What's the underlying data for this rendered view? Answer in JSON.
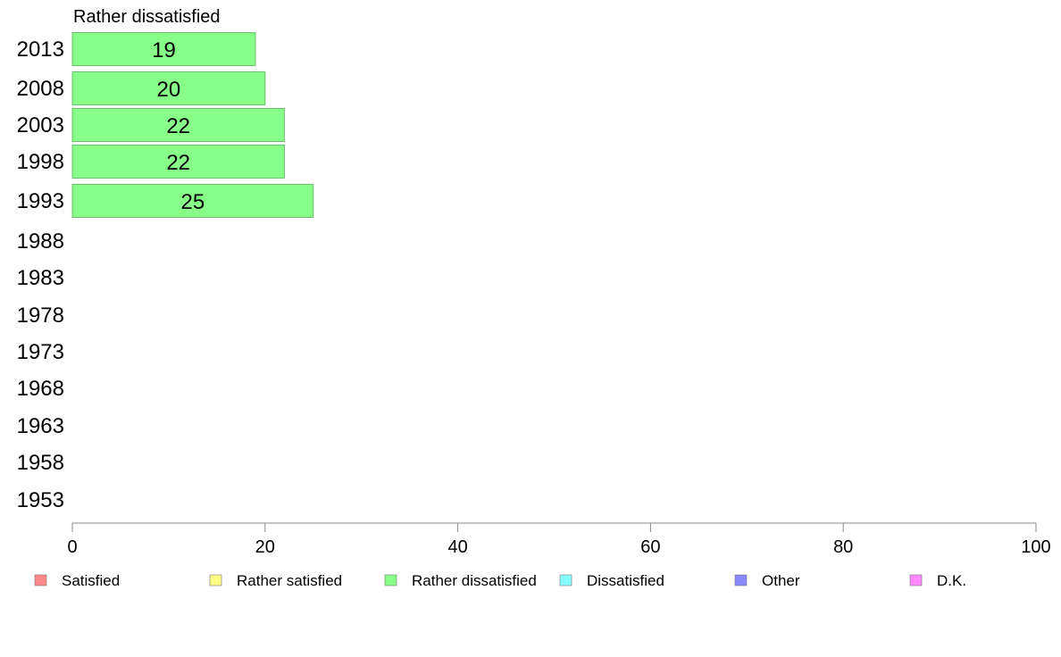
{
  "chart_data": {
    "type": "bar",
    "orientation": "horizontal",
    "title": "Rather dissatisfied",
    "categories": [
      "2013",
      "2008",
      "2003",
      "1998",
      "1993",
      "1988",
      "1983",
      "1978",
      "1973",
      "1968",
      "1963",
      "1958",
      "1953"
    ],
    "series": [
      {
        "name": "Rather dissatisfied",
        "color": "#88ff88",
        "values": [
          19,
          20,
          22,
          22,
          25,
          null,
          null,
          null,
          null,
          null,
          null,
          null,
          null
        ],
        "labels": [
          "19",
          "20",
          "22",
          "22",
          "25",
          "",
          "",
          "",
          "",
          "",
          "",
          "",
          ""
        ]
      }
    ],
    "xlim": [
      0,
      100
    ],
    "xticks": [
      "0",
      "20",
      "40",
      "60",
      "80",
      "100"
    ],
    "grid": false,
    "legend_position": "bottom",
    "legend": [
      {
        "label": "Satisfied",
        "color": "#ff8888"
      },
      {
        "label": "Rather satisfied",
        "color": "#ffff88"
      },
      {
        "label": "Rather dissatisfied",
        "color": "#88ff88"
      },
      {
        "label": "Dissatisfied",
        "color": "#88ffff"
      },
      {
        "label": "Other",
        "color": "#8888ff"
      },
      {
        "label": "D.K.",
        "color": "#ff88ff"
      }
    ]
  }
}
